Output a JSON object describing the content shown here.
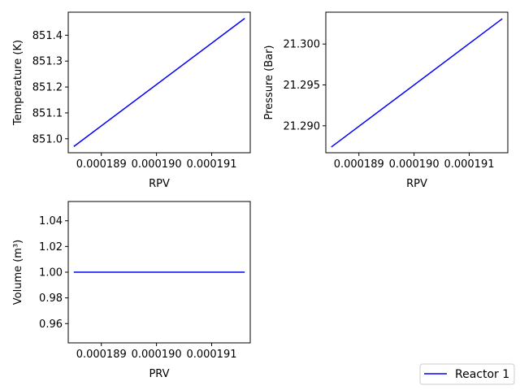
{
  "chart_data": [
    {
      "type": "line",
      "xlabel": "RPV",
      "ylabel": "Temperature (K)",
      "x_ticks": [
        "0.000189",
        "0.000190",
        "0.000191"
      ],
      "x_tick_values": [
        0.000189,
        0.00019,
        0.000191
      ],
      "y_ticks": [
        "851.0",
        "851.1",
        "851.2",
        "851.3",
        "851.4"
      ],
      "y_tick_values": [
        851.0,
        851.1,
        851.2,
        851.3,
        851.4
      ],
      "xlim": [
        0.0001884,
        0.0001917
      ],
      "ylim": [
        850.946,
        851.489
      ],
      "series": [
        {
          "color": "#0000ff",
          "x": [
            0.0001885,
            0.0001916
          ],
          "y": [
            850.97,
            851.465
          ]
        }
      ]
    },
    {
      "type": "line",
      "xlabel": "RPV",
      "ylabel": "Pressure (Bar)",
      "x_ticks": [
        "0.000189",
        "0.000190",
        "0.000191"
      ],
      "x_tick_values": [
        0.000189,
        0.00019,
        0.000191
      ],
      "y_ticks": [
        "21.290",
        "21.295",
        "21.300"
      ],
      "y_tick_values": [
        21.29,
        21.295,
        21.3
      ],
      "xlim": [
        0.0001884,
        0.0001917
      ],
      "ylim": [
        21.2867,
        21.3039
      ],
      "series": [
        {
          "color": "#0000ff",
          "x": [
            0.0001885,
            0.0001916
          ],
          "y": [
            21.2874,
            21.3031
          ]
        }
      ]
    },
    {
      "type": "line",
      "xlabel": "PRV",
      "ylabel": "Volume (m³)",
      "x_ticks": [
        "0.000189",
        "0.000190",
        "0.000191"
      ],
      "x_tick_values": [
        0.000189,
        0.00019,
        0.000191
      ],
      "y_ticks": [
        "0.96",
        "0.98",
        "1.00",
        "1.02",
        "1.04"
      ],
      "y_tick_values": [
        0.96,
        0.98,
        1.0,
        1.02,
        1.04
      ],
      "xlim": [
        0.0001884,
        0.0001917
      ],
      "ylim": [
        0.945,
        1.055
      ],
      "series": [
        {
          "color": "#0000ff",
          "x": [
            0.0001885,
            0.0001916
          ],
          "y": [
            1.0,
            1.0
          ]
        }
      ]
    }
  ],
  "legend": {
    "position": "bottom-right",
    "entries": [
      {
        "label": "Reactor 1",
        "color": "#0000ff"
      }
    ]
  }
}
